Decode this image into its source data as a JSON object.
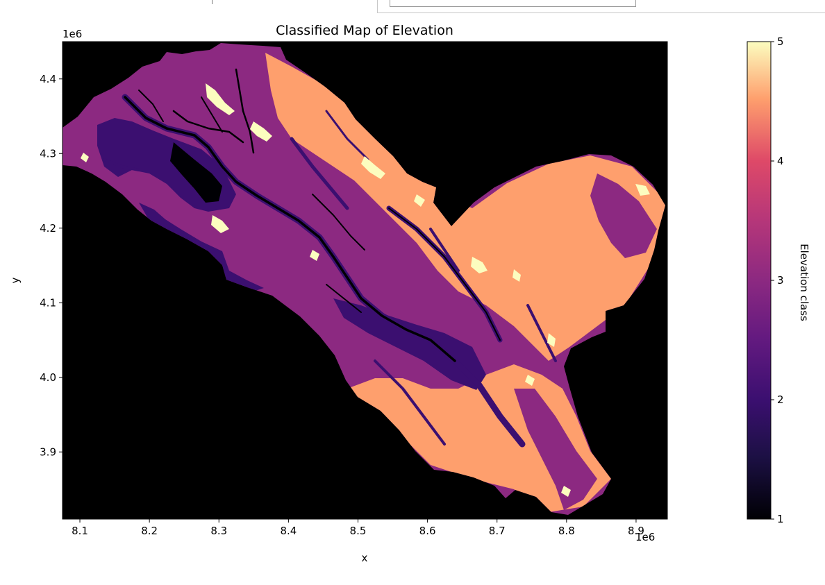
{
  "chart_data": {
    "type": "heatmap",
    "title": "Classified Map of Elevation",
    "xlabel": "x",
    "ylabel": "y",
    "x_offset_label": "1e6",
    "y_offset_label": "1e6",
    "xlim": [
      8.075,
      8.945
    ],
    "ylim": [
      3.81,
      4.45
    ],
    "x_ticks": [
      8.1,
      8.2,
      8.3,
      8.4,
      8.5,
      8.6,
      8.7,
      8.8,
      8.9
    ],
    "x_tick_labels": [
      "8.1",
      "8.2",
      "8.3",
      "8.4",
      "8.5",
      "8.6",
      "8.7",
      "8.8",
      "8.9"
    ],
    "y_ticks": [
      3.9,
      4.0,
      4.1,
      4.2,
      4.3,
      4.4
    ],
    "y_tick_labels": [
      "3.9",
      "4.0",
      "4.1",
      "4.2",
      "4.3",
      "4.4"
    ],
    "colormap": "magma",
    "background_color": "#000000",
    "class_colors": {
      "1": "#000004",
      "2": "#3b0f70",
      "3": "#8c2981",
      "4": "#fe9f6d",
      "5": "#fcfdbf"
    },
    "colorbar": {
      "label": "Elevation class",
      "range": [
        1,
        5
      ],
      "ticks": [
        1,
        2,
        3,
        4,
        5
      ],
      "tick_labels": [
        "1",
        "2",
        "3",
        "4",
        "5"
      ]
    },
    "grid": false
  }
}
